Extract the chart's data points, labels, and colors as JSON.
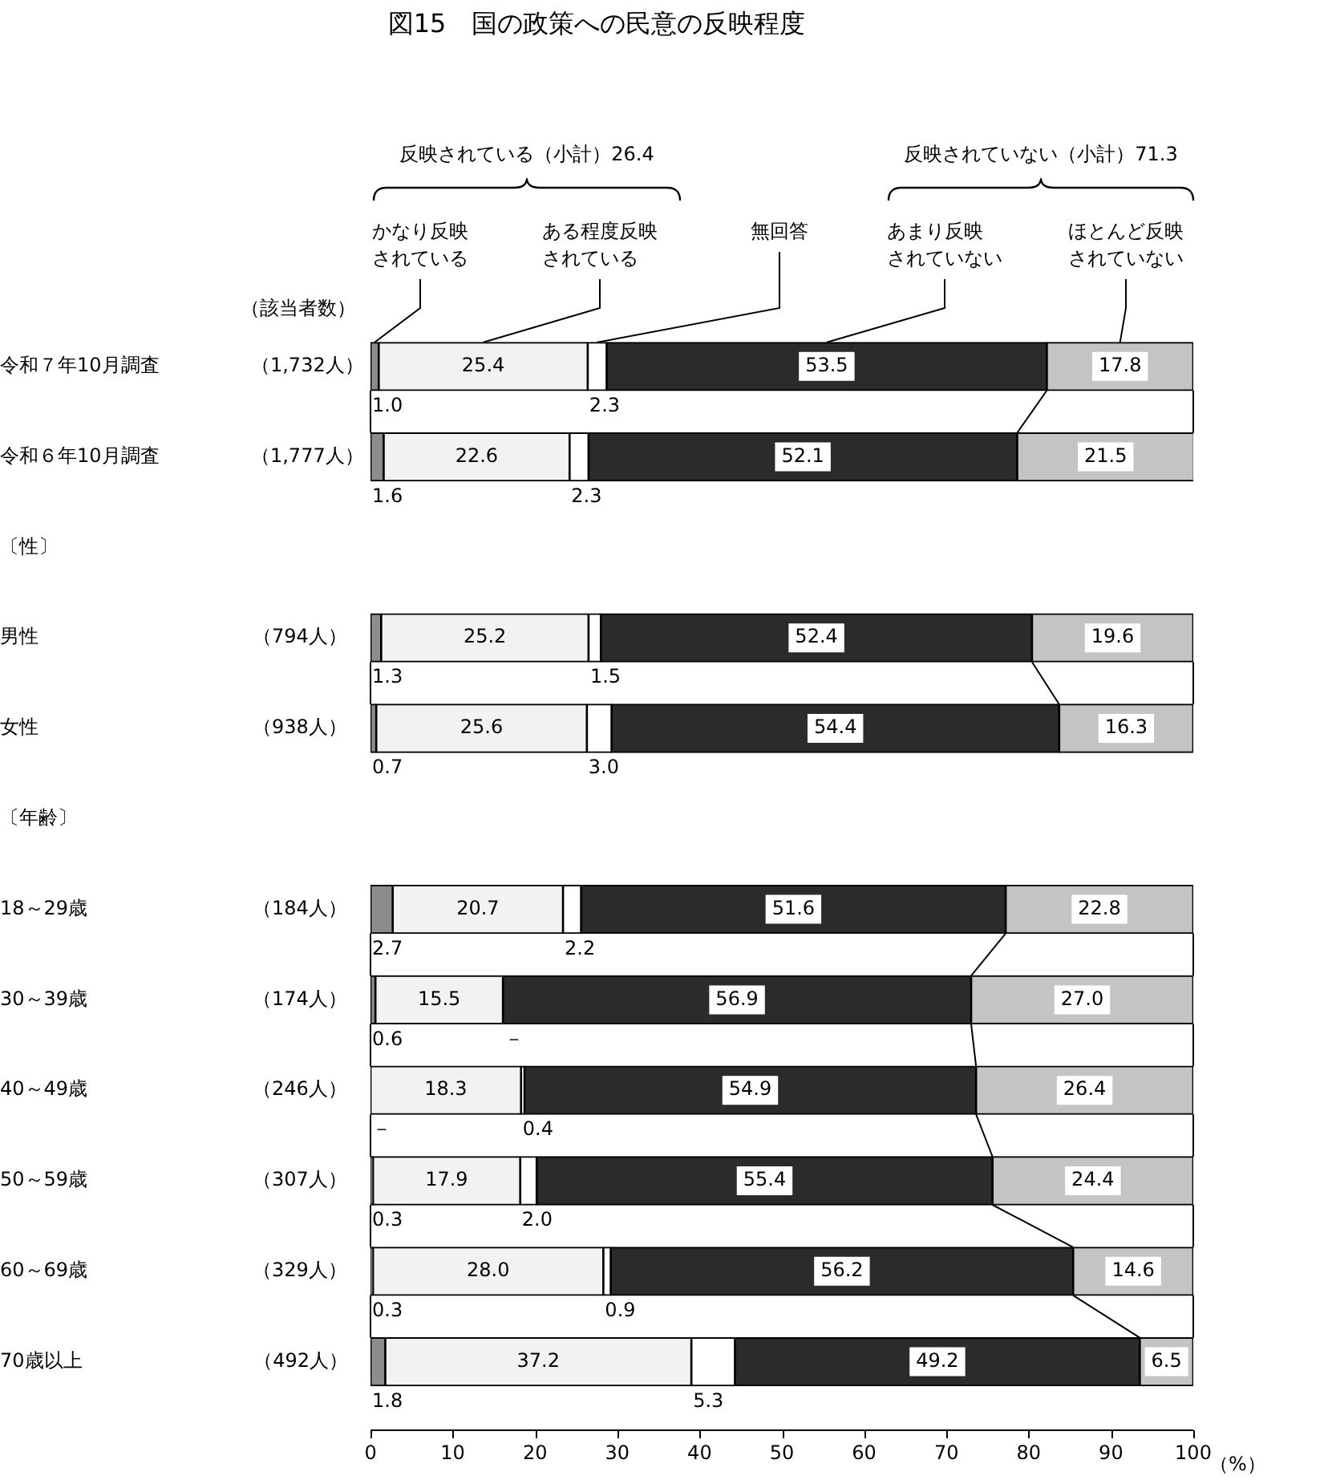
{
  "chart_data": {
    "type": "bar",
    "orientation": "horizontal",
    "stacked": true,
    "title": "図15　国の政策への民意の反映程度",
    "xlabel": "（%）",
    "categories": [
      "令和７年10月調査 （1,732人）",
      "令和６年10月調査 （1,777人）",
      "〔性〕",
      "男性 （794人）",
      "女性 （938人）",
      "〔年齢〕",
      "18～29歳 （184人）",
      "30～39歳 （174人）",
      "40～49歳 （246人）",
      "50～59歳 （307人）",
      "60～69歳 （329人）",
      "70歳以上 （492人）"
    ],
    "series": [
      {
        "name": "かなり反映されている",
        "color": "#8c8c8c",
        "values": [
          1.0,
          1.6,
          null,
          1.3,
          0.7,
          null,
          2.7,
          0.6,
          0,
          0.3,
          0.3,
          1.8
        ],
        "value_labels": [
          "1.0",
          "1.6",
          null,
          "1.3",
          "0.7",
          null,
          "2.7",
          "0.6",
          "－",
          "0.3",
          "0.3",
          "1.8"
        ]
      },
      {
        "name": "ある程度反映されている",
        "color": "#f2f2f2",
        "values": [
          25.4,
          22.6,
          null,
          25.2,
          25.6,
          null,
          20.7,
          15.5,
          18.3,
          17.9,
          28.0,
          37.2
        ],
        "value_labels": [
          "25.4",
          "22.6",
          null,
          "25.2",
          "25.6",
          null,
          "20.7",
          "15.5",
          "18.3",
          "17.9",
          "28.0",
          "37.2"
        ]
      },
      {
        "name": "無回答",
        "color": "#ffffff",
        "values": [
          2.3,
          2.3,
          null,
          1.5,
          3.0,
          null,
          2.2,
          0,
          0.4,
          2.0,
          0.9,
          5.3
        ],
        "value_labels": [
          "2.3",
          "2.3",
          null,
          "1.5",
          "3.0",
          null,
          "2.2",
          "－",
          "0.4",
          "2.0",
          "0.9",
          "5.3"
        ]
      },
      {
        "name": "あまり反映されていない",
        "color": "#2b2b2b",
        "values": [
          53.5,
          52.1,
          null,
          52.4,
          54.4,
          null,
          51.6,
          56.9,
          54.9,
          55.4,
          56.2,
          49.2
        ],
        "value_labels": [
          "53.5",
          "52.1",
          null,
          "52.4",
          "54.4",
          null,
          "51.6",
          "56.9",
          "54.9",
          "55.4",
          "56.2",
          "49.2"
        ]
      },
      {
        "name": "ほとんど反映されていない",
        "color": "#c4c4c4",
        "values": [
          17.8,
          21.5,
          null,
          19.6,
          16.3,
          null,
          22.8,
          27.0,
          26.4,
          24.4,
          14.6,
          6.5
        ],
        "value_labels": [
          "17.8",
          "21.5",
          null,
          "19.6",
          "16.3",
          null,
          "22.8",
          "27.0",
          "26.4",
          "24.4",
          "14.6",
          "6.5"
        ]
      }
    ],
    "xlim": [
      0,
      100
    ],
    "xticks": [
      0,
      10,
      20,
      30,
      40,
      50,
      60,
      70,
      80,
      90,
      100
    ],
    "grid": false,
    "annotations": [
      "（該当者数）",
      "反映されている（小計）26.4",
      "反映されていない（小計）71.3"
    ]
  }
}
